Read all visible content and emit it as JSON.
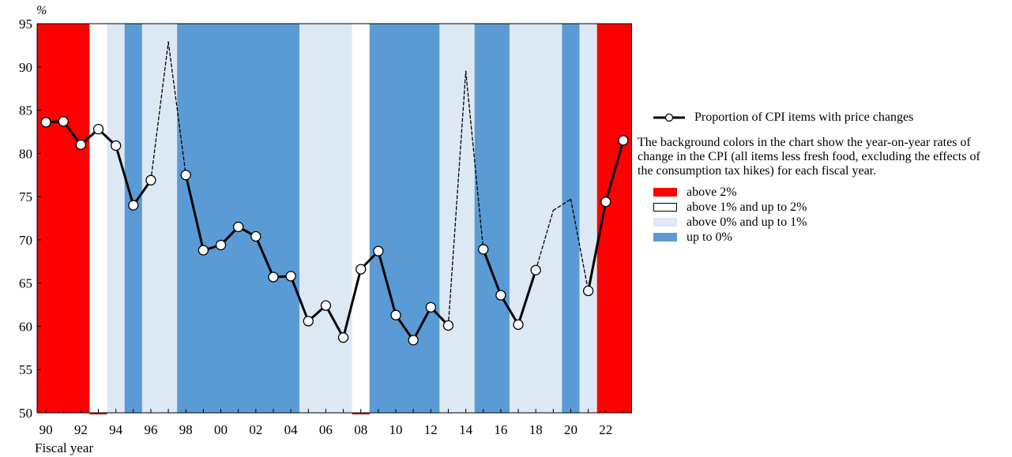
{
  "chart_data": {
    "type": "line",
    "yunit": "%",
    "xlabel": "Fiscal year",
    "ylim": [
      50,
      95
    ],
    "yticks": [
      50,
      55,
      60,
      65,
      70,
      75,
      80,
      85,
      90,
      95
    ],
    "xlim": [
      1989.5,
      2023.5
    ],
    "xticks": [
      {
        "x": 1990,
        "label": "90"
      },
      {
        "x": 1992,
        "label": "92"
      },
      {
        "x": 1994,
        "label": "94"
      },
      {
        "x": 1996,
        "label": "96"
      },
      {
        "x": 1998,
        "label": "98"
      },
      {
        "x": 2000,
        "label": "00"
      },
      {
        "x": 2002,
        "label": "02"
      },
      {
        "x": 2004,
        "label": "04"
      },
      {
        "x": 2006,
        "label": "06"
      },
      {
        "x": 2008,
        "label": "08"
      },
      {
        "x": 2010,
        "label": "10"
      },
      {
        "x": 2012,
        "label": "12"
      },
      {
        "x": 2014,
        "label": "14"
      },
      {
        "x": 2016,
        "label": "16"
      },
      {
        "x": 2018,
        "label": "18"
      },
      {
        "x": 2020,
        "label": "20"
      },
      {
        "x": 2022,
        "label": "22"
      }
    ],
    "series": [
      {
        "name": "Proportion of CPI items with price changes",
        "points": [
          {
            "x": 1990,
            "y": 83.6,
            "marker": true
          },
          {
            "x": 1991,
            "y": 83.7,
            "marker": true
          },
          {
            "x": 1992,
            "y": 81.0,
            "marker": true
          },
          {
            "x": 1993,
            "y": 82.8,
            "marker": true
          },
          {
            "x": 1994,
            "y": 80.9,
            "marker": true
          },
          {
            "x": 1995,
            "y": 74.0,
            "marker": true
          },
          {
            "x": 1996,
            "y": 76.9,
            "marker": true
          },
          {
            "x": 1997,
            "y": 92.9,
            "marker": false
          },
          {
            "x": 1998,
            "y": 77.5,
            "marker": true
          },
          {
            "x": 1999,
            "y": 68.8,
            "marker": true
          },
          {
            "x": 2000,
            "y": 69.4,
            "marker": true
          },
          {
            "x": 2001,
            "y": 71.5,
            "marker": true
          },
          {
            "x": 2002,
            "y": 70.4,
            "marker": true
          },
          {
            "x": 2003,
            "y": 65.7,
            "marker": true
          },
          {
            "x": 2004,
            "y": 65.8,
            "marker": true
          },
          {
            "x": 2005,
            "y": 60.6,
            "marker": true
          },
          {
            "x": 2006,
            "y": 62.4,
            "marker": true
          },
          {
            "x": 2007,
            "y": 58.7,
            "marker": true
          },
          {
            "x": 2008,
            "y": 66.6,
            "marker": true
          },
          {
            "x": 2009,
            "y": 68.7,
            "marker": true
          },
          {
            "x": 2010,
            "y": 61.3,
            "marker": true
          },
          {
            "x": 2011,
            "y": 58.4,
            "marker": true
          },
          {
            "x": 2012,
            "y": 62.2,
            "marker": true
          },
          {
            "x": 2013,
            "y": 60.1,
            "marker": true
          },
          {
            "x": 2014,
            "y": 89.5,
            "marker": false
          },
          {
            "x": 2015,
            "y": 68.9,
            "marker": true
          },
          {
            "x": 2016,
            "y": 63.6,
            "marker": true
          },
          {
            "x": 2017,
            "y": 60.2,
            "marker": true
          },
          {
            "x": 2018,
            "y": 66.5,
            "marker": true
          },
          {
            "x": 2019,
            "y": 73.4,
            "marker": false
          },
          {
            "x": 2020,
            "y": 74.7,
            "marker": false
          },
          {
            "x": 2021,
            "y": 64.1,
            "marker": true
          },
          {
            "x": 2022,
            "y": 74.4,
            "marker": true
          },
          {
            "x": 2023,
            "y": 81.5,
            "marker": true
          }
        ],
        "dashed_segments": [
          [
            1996,
            1998
          ],
          [
            2013,
            2015
          ],
          [
            2018,
            2021
          ]
        ]
      }
    ],
    "background_bands": [
      {
        "from": 1989.5,
        "to": 1992.5,
        "category": "above 2%"
      },
      {
        "from": 1992.5,
        "to": 1993.5,
        "category": "above 1% and up to 2%"
      },
      {
        "from": 1993.5,
        "to": 1994.5,
        "category": "above 0% and up to 1%"
      },
      {
        "from": 1994.5,
        "to": 1995.5,
        "category": "up to 0%"
      },
      {
        "from": 1995.5,
        "to": 1997.5,
        "category": "above 0% and up to 1%"
      },
      {
        "from": 1997.5,
        "to": 2004.5,
        "category": "up to 0%"
      },
      {
        "from": 2004.5,
        "to": 2007.5,
        "category": "above 0% and up to 1%"
      },
      {
        "from": 2007.5,
        "to": 2008.5,
        "category": "above 1% and up to 2%"
      },
      {
        "from": 2008.5,
        "to": 2012.5,
        "category": "up to 0%"
      },
      {
        "from": 2012.5,
        "to": 2014.5,
        "category": "above 0% and up to 1%"
      },
      {
        "from": 2014.5,
        "to": 2016.5,
        "category": "up to 0%"
      },
      {
        "from": 2016.5,
        "to": 2019.5,
        "category": "above 0% and up to 1%"
      },
      {
        "from": 2019.5,
        "to": 2020.5,
        "category": "up to 0%"
      },
      {
        "from": 2020.5,
        "to": 2021.5,
        "category": "above 0% and up to 1%"
      },
      {
        "from": 2021.5,
        "to": 2023.5,
        "category": "above 2%"
      }
    ],
    "legend": {
      "series_label": "Proportion of CPI items with price changes",
      "note": "The background colors in the chart show the year-on-year rates of change in the CPI (all items less fresh food, excluding the effects of the consumption tax hikes) for each fiscal year.",
      "categories": [
        {
          "label": "above 2%",
          "color": "#ff0000"
        },
        {
          "label": "above 1% and up to 2%",
          "color": "#ffffff"
        },
        {
          "label": "above 0% and up to 1%",
          "color": "#dde8f5"
        },
        {
          "label": "up to 0%",
          "color": "#5b9bd5"
        }
      ]
    },
    "grid": false
  }
}
